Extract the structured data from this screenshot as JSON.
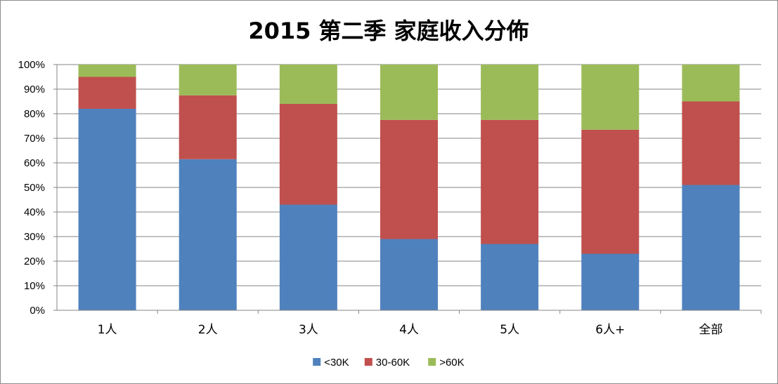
{
  "chart_data": {
    "type": "bar",
    "stacked": true,
    "percent": true,
    "title": "2015 第二季 家庭收入分佈",
    "categories": [
      "1人",
      "2人",
      "3人",
      "4人",
      "5人",
      "6人+",
      "全部"
    ],
    "series": [
      {
        "name": "<30K",
        "color": "#4f81bd",
        "values": [
          82,
          61.5,
          43,
          29,
          27,
          23,
          51
        ]
      },
      {
        "name": "30-60K",
        "color": "#c0504d",
        "values": [
          13,
          26,
          41,
          48.5,
          50.5,
          50.5,
          34
        ]
      },
      {
        "name": ">60K",
        "color": "#9bbb59",
        "values": [
          5,
          12.5,
          16,
          22.5,
          22.5,
          26.5,
          15
        ]
      }
    ],
    "ylim": [
      0,
      100
    ],
    "yticks": [
      "0%",
      "10%",
      "20%",
      "30%",
      "40%",
      "50%",
      "60%",
      "70%",
      "80%",
      "90%",
      "100%"
    ],
    "grid": true,
    "legend": "bottom"
  }
}
